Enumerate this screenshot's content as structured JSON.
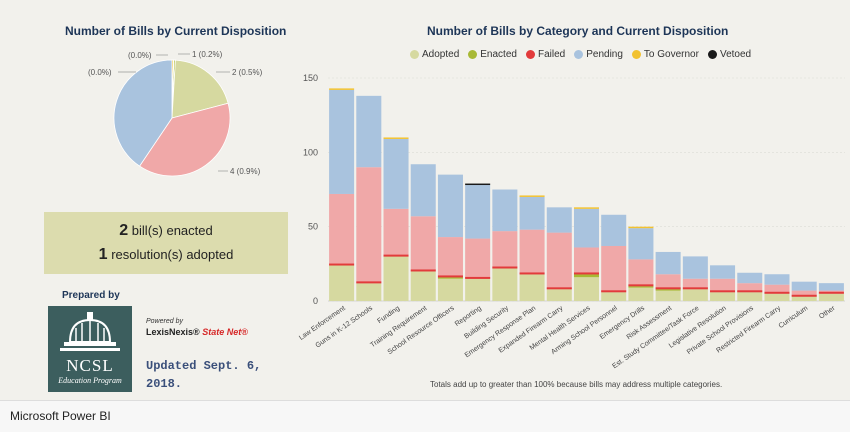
{
  "pie": {
    "title": "Number of Bills by Current Disposition",
    "labels": [
      "(0.0%)",
      "(0.0%)",
      "1 (0.2%)",
      "2 (0.5%)",
      "4 (0.9%)"
    ]
  },
  "summary": {
    "enacted_count": "2",
    "enacted_text": "bill(s) enacted",
    "adopted_count": "1",
    "adopted_text": "resolution(s) adopted"
  },
  "credits": {
    "prepared_by": "Prepared by",
    "ncsl_name": "NCSL",
    "ncsl_sub": "Education Program",
    "powered_by": "Powered by",
    "lexisnexis": "LexisNexis®",
    "statenet": "State Net®",
    "updated": "Updated Sept. 6, 2018."
  },
  "bar": {
    "title": "Number of Bills by Category and Current Disposition",
    "footnote": "Totals add up to greater than 100% because bills may address multiple categories."
  },
  "colors": {
    "Adopted": "#d6d9a0",
    "Enacted": "#a8b935",
    "Failed": "#e23b3b",
    "Pending": "#a9c3de",
    "To Governor": "#f2c230",
    "Vetoed": "#1a1a1a",
    "Failed_area": "#f0a8a8"
  },
  "chart_data": {
    "type": "bar",
    "stacked": true,
    "ylim": [
      0,
      150
    ],
    "yticks": [
      0,
      50,
      100,
      150
    ],
    "legend": [
      "Adopted",
      "Enacted",
      "Failed",
      "Pending",
      "To Governor",
      "Vetoed"
    ],
    "categories": [
      "Law Enforcement",
      "Guns in K-12 Schools",
      "Funding",
      "Training Requirement",
      "School Resource Officers",
      "Reporting",
      "Building Security",
      "Emergency Response Plan",
      "Expanded Firearm Carry",
      "Mental Health Services",
      "Arming School Personnel",
      "Emergency Drills",
      "Risk Assessment",
      "Est. Study Committee/Task Force",
      "Legislative Resolution",
      "Private School Provisions",
      "Restricted Firearm Carry",
      "Curriculum",
      "Other"
    ],
    "series": [
      {
        "name": "Adopted",
        "values": [
          24,
          12,
          30,
          20,
          15,
          15,
          22,
          18,
          8,
          16,
          6,
          9,
          7,
          8,
          6,
          6,
          5,
          3,
          5
        ]
      },
      {
        "name": "Enacted",
        "values": [
          0,
          0,
          0,
          0,
          1,
          0,
          0,
          0,
          0,
          2,
          0,
          1,
          1,
          0,
          0,
          0,
          0,
          0,
          0
        ]
      },
      {
        "name": "Failed",
        "values": [
          48,
          78,
          32,
          37,
          27,
          27,
          25,
          30,
          38,
          18,
          31,
          18,
          10,
          7,
          9,
          6,
          6,
          4,
          2
        ]
      },
      {
        "name": "Pending",
        "values": [
          70,
          48,
          47,
          35,
          42,
          36,
          28,
          22,
          17,
          26,
          21,
          21,
          15,
          15,
          9,
          7,
          7,
          6,
          5
        ]
      },
      {
        "name": "To Governor",
        "values": [
          1,
          0,
          1,
          0,
          0,
          0,
          0,
          1,
          0,
          1,
          0,
          1,
          0,
          0,
          0,
          0,
          0,
          0,
          0
        ]
      },
      {
        "name": "Vetoed",
        "values": [
          0,
          0,
          0,
          0,
          0,
          1,
          0,
          0,
          0,
          0,
          0,
          0,
          0,
          0,
          0,
          0,
          0,
          0,
          0
        ]
      }
    ]
  },
  "app": {
    "name": "Microsoft Power BI"
  }
}
